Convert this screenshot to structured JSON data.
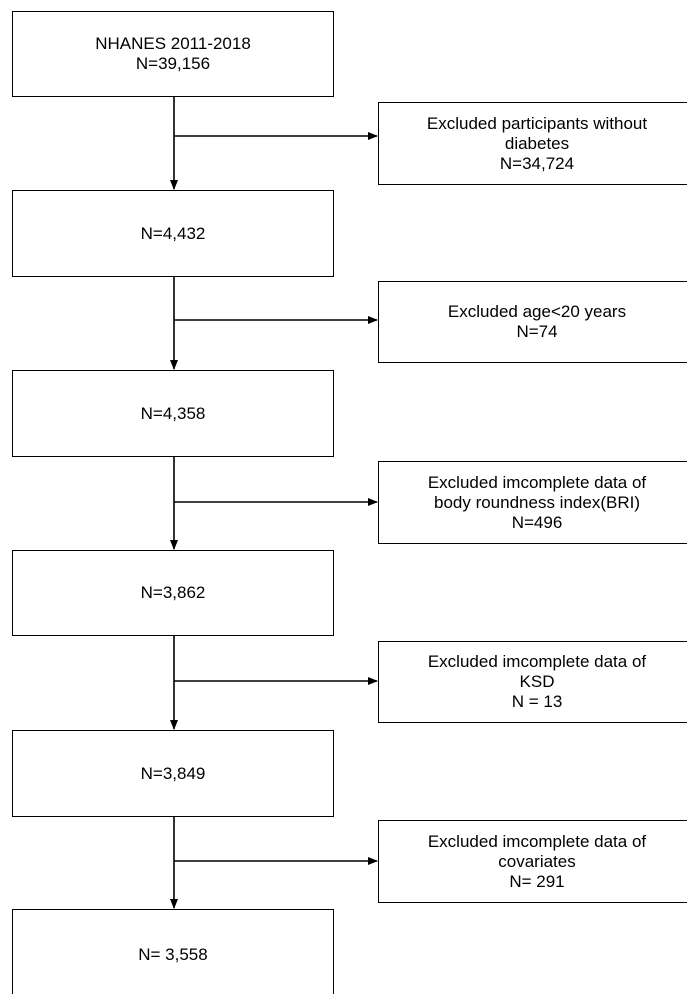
{
  "flow": {
    "steps": [
      {
        "lines": [
          "NHANES 2011-2018",
          "N=39,156"
        ]
      },
      {
        "lines": [
          "N=4,432"
        ]
      },
      {
        "lines": [
          "N=4,358"
        ]
      },
      {
        "lines": [
          "N=3,862"
        ]
      },
      {
        "lines": [
          "N=3,849"
        ]
      },
      {
        "lines": [
          "N= 3,558"
        ]
      }
    ],
    "exclusions": [
      {
        "lines": [
          "Excluded participants without",
          "diabetes",
          "N=34,724"
        ]
      },
      {
        "lines": [
          "Excluded age<20 years",
          "N=74"
        ]
      },
      {
        "lines": [
          "Excluded imcomplete data of",
          "body roundness index(BRI)",
          "N=496"
        ]
      },
      {
        "lines": [
          "Excluded imcomplete data of",
          "KSD",
          "N = 13"
        ]
      },
      {
        "lines": [
          "Excluded imcomplete data of",
          "covariates",
          "N= 291"
        ]
      }
    ]
  }
}
